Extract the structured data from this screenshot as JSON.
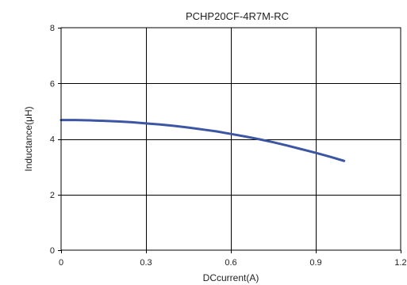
{
  "chart_data": {
    "type": "line",
    "title": "PCHP20CF-4R7M-RC",
    "xlabel": "DCcurrent(A)",
    "ylabel": "Inductance(μH)",
    "xlim": [
      0,
      1.2
    ],
    "ylim": [
      0,
      8
    ],
    "xticks": [
      0,
      0.3,
      0.6,
      0.9,
      1.2
    ],
    "xtick_labels": [
      "0",
      "0.3",
      "0.6",
      "0.9",
      "1.2"
    ],
    "yticks": [
      0,
      2,
      4,
      6,
      8
    ],
    "ytick_labels": [
      "0",
      "2",
      "4",
      "6",
      "8"
    ],
    "grid": true,
    "series": [
      {
        "color": "#3d56a3",
        "x": [
          0,
          0.05,
          0.1,
          0.15,
          0.2,
          0.25,
          0.3,
          0.35,
          0.4,
          0.45,
          0.5,
          0.55,
          0.6,
          0.65,
          0.7,
          0.75,
          0.8,
          0.85,
          0.9,
          0.95,
          1.0
        ],
        "y": [
          4.68,
          4.68,
          4.67,
          4.65,
          4.63,
          4.6,
          4.56,
          4.52,
          4.47,
          4.41,
          4.34,
          4.27,
          4.18,
          4.09,
          3.99,
          3.88,
          3.76,
          3.63,
          3.5,
          3.36,
          3.21
        ]
      }
    ]
  }
}
